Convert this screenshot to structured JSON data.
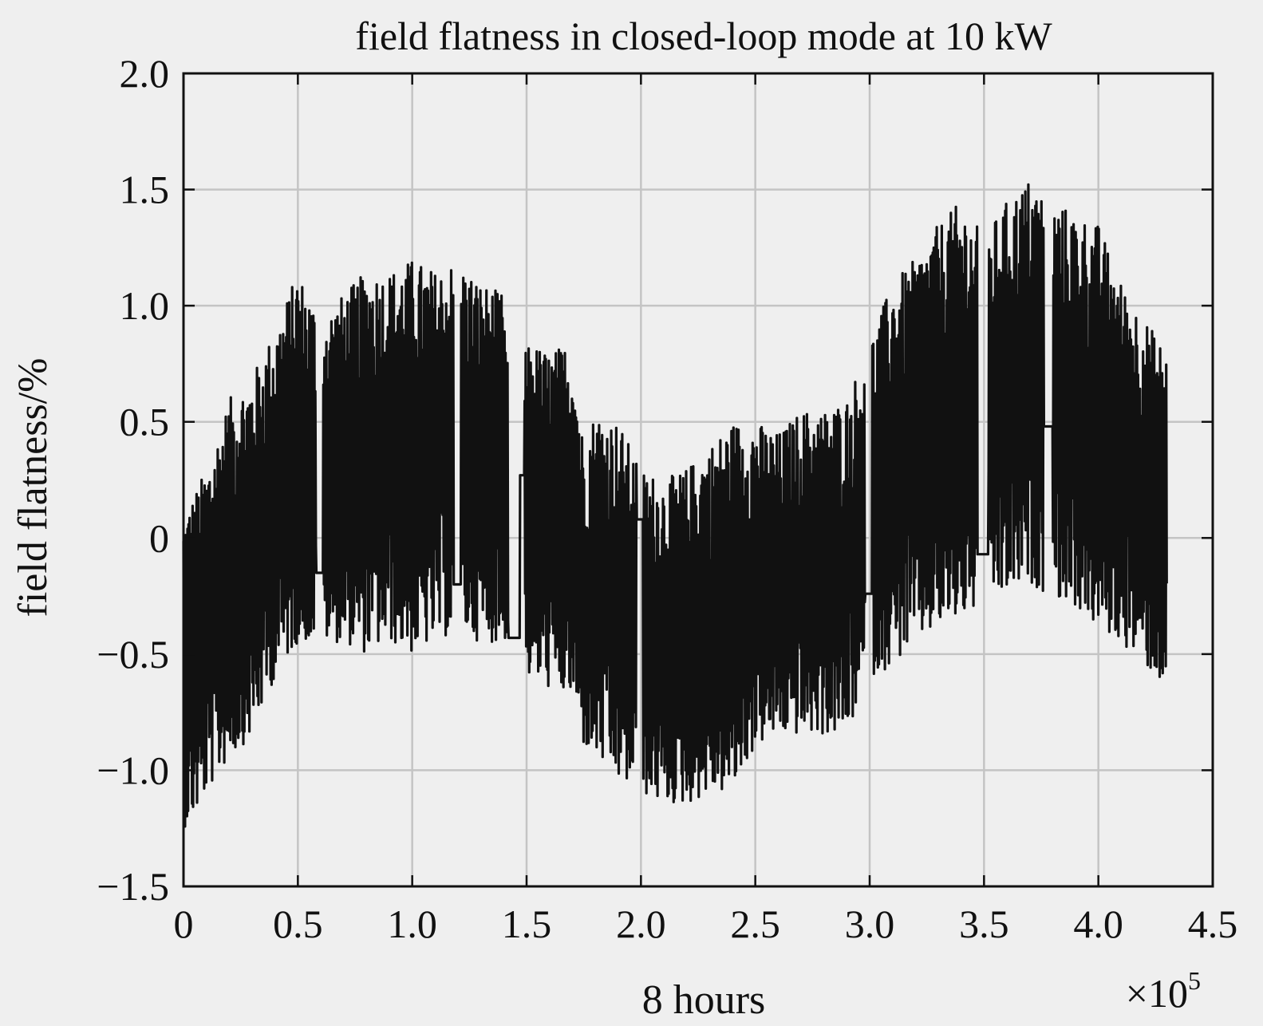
{
  "chart_data": {
    "type": "line",
    "title": "field flatness in closed-loop mode at 10 kW",
    "xlabel": "8 hours",
    "ylabel": "field flatness/%",
    "x_exponent_label": "×10",
    "x_exponent_power": "5",
    "x_multiplier": 100000,
    "xlim": [
      0,
      4.5
    ],
    "ylim": [
      -1.5,
      2.0
    ],
    "grid": true,
    "x_ticks": [
      0,
      0.5,
      1.0,
      1.5,
      2.0,
      2.5,
      3.0,
      3.5,
      4.0,
      4.5
    ],
    "x_tick_labels": [
      "0",
      "0.5",
      "1.0",
      "1.5",
      "2.0",
      "2.5",
      "3.0",
      "3.5",
      "4.0",
      "4.5"
    ],
    "y_ticks": [
      -1.5,
      -1.0,
      -0.5,
      0,
      0.5,
      1.0,
      1.5,
      2.0
    ],
    "y_tick_labels": [
      "−1.5",
      "−1.0",
      "−0.5",
      "0",
      "0.5",
      "1.0",
      "1.5",
      "2.0"
    ],
    "line_color": "#111111",
    "series": [
      {
        "envelope_x": [
          0.0,
          0.05,
          0.1,
          0.2,
          0.3,
          0.4,
          0.5,
          0.6,
          0.7,
          0.8,
          0.9,
          1.0,
          1.1,
          1.2,
          1.3,
          1.4,
          1.45,
          1.5,
          1.6,
          1.7,
          1.75,
          1.8,
          1.9,
          2.0,
          2.1,
          2.2,
          2.3,
          2.4,
          2.5,
          2.6,
          2.7,
          2.8,
          2.9,
          3.0,
          3.1,
          3.2,
          3.3,
          3.4,
          3.5,
          3.6,
          3.7,
          3.8,
          3.9,
          4.0,
          4.1,
          4.2,
          4.3
        ],
        "envelope_upper": [
          0.1,
          0.2,
          0.3,
          0.6,
          0.7,
          0.9,
          1.15,
          0.95,
          1.05,
          1.15,
          1.15,
          1.2,
          1.15,
          1.2,
          1.1,
          1.05,
          0.25,
          0.85,
          0.8,
          0.85,
          0.4,
          0.55,
          0.5,
          0.3,
          0.25,
          0.3,
          0.4,
          0.5,
          0.5,
          0.45,
          0.55,
          0.55,
          0.6,
          0.85,
          1.1,
          1.2,
          1.35,
          1.45,
          1.3,
          1.45,
          1.55,
          1.45,
          1.4,
          1.35,
          1.1,
          0.95,
          0.8
        ],
        "envelope_lower": [
          -1.25,
          -1.2,
          -1.1,
          -0.95,
          -0.85,
          -0.6,
          -0.45,
          -0.45,
          -0.45,
          -0.5,
          -0.45,
          -0.5,
          -0.45,
          -0.4,
          -0.45,
          -0.45,
          -0.4,
          -0.6,
          -0.65,
          -0.7,
          -0.9,
          -0.95,
          -1.05,
          -1.1,
          -1.15,
          -1.15,
          -1.1,
          -1.1,
          -0.9,
          -0.85,
          -0.85,
          -0.85,
          -0.85,
          -0.6,
          -0.55,
          -0.45,
          -0.4,
          -0.35,
          -0.3,
          -0.25,
          -0.2,
          -0.25,
          -0.3,
          -0.4,
          -0.45,
          -0.55,
          -0.65
        ],
        "flat_segments": [
          {
            "x": [
              0.58,
              0.61
            ],
            "y": -0.15
          },
          {
            "x": [
              1.18,
              1.21
            ],
            "y": -0.2
          },
          {
            "x": [
              1.42,
              1.47
            ],
            "y": -0.43
          },
          {
            "x": [
              1.47,
              1.49
            ],
            "y": 0.27
          },
          {
            "x": [
              1.98,
              2.01
            ],
            "y": 0.08
          },
          {
            "x": [
              2.98,
              3.01
            ],
            "y": -0.24
          },
          {
            "x": [
              3.47,
              3.52
            ],
            "y": -0.07
          },
          {
            "x": [
              3.76,
              3.8
            ],
            "y": 0.48
          }
        ]
      }
    ]
  }
}
